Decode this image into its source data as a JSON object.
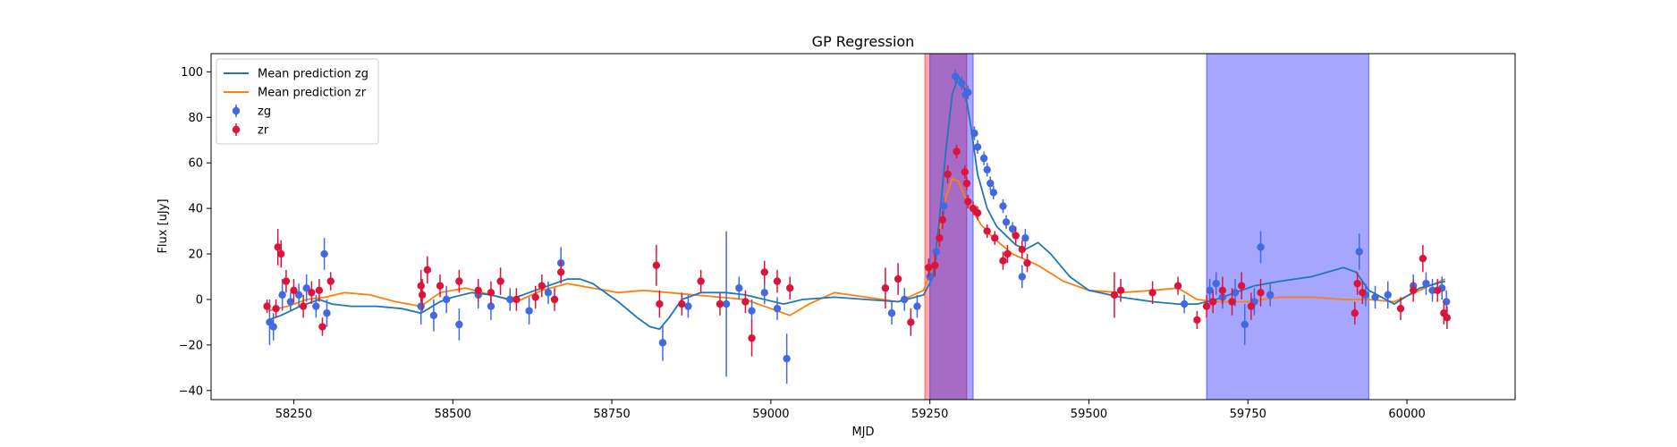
{
  "chart_data": {
    "type": "scatter",
    "title": "GP Regression",
    "xlabel": "MJD",
    "ylabel": "Flux [uJy]",
    "xlim": [
      58120,
      60170
    ],
    "ylim": [
      -44,
      108
    ],
    "xticks": [
      58250,
      58500,
      58750,
      59000,
      59250,
      59500,
      59750,
      60000
    ],
    "yticks": [
      -40,
      -20,
      0,
      20,
      40,
      60,
      80,
      100
    ],
    "legend_position": "upper left",
    "colors": {
      "zg": "#4169e1",
      "zr": "#dc143c",
      "zg_mean": "#1f77b4",
      "zr_mean": "#ff7f0e",
      "band_zg": "#0000ff",
      "band_zr": "#ff0000"
    },
    "legend": [
      {
        "label": "Mean prediction zg",
        "kind": "line",
        "color": "#1f77b4"
      },
      {
        "label": "Mean prediction zr",
        "kind": "line",
        "color": "#ff7f0e"
      },
      {
        "label": "zg",
        "kind": "errorbar",
        "color": "#4169e1"
      },
      {
        "label": "zr",
        "kind": "errorbar",
        "color": "#dc143c"
      }
    ],
    "bands": [
      {
        "series": "zr",
        "x0": 59242,
        "x1": 59308,
        "color": "#ff0000",
        "alpha": 0.35
      },
      {
        "series": "zg",
        "x0": 59250,
        "x1": 59318,
        "color": "#0000ff",
        "alpha": 0.35
      },
      {
        "series": "zg",
        "x0": 59685,
        "x1": 59940,
        "color": "#0000ff",
        "alpha": 0.35
      }
    ],
    "mean_zg": {
      "x": [
        58210,
        58230,
        58260,
        58290,
        58310,
        58340,
        58380,
        58420,
        58450,
        58480,
        58500,
        58530,
        58560,
        58590,
        58620,
        58650,
        58680,
        58700,
        58720,
        58760,
        58790,
        58810,
        58825,
        58840,
        58860,
        58890,
        58930,
        58960,
        58990,
        59020,
        59050,
        59100,
        59150,
        59200,
        59240,
        59255,
        59265,
        59275,
        59285,
        59295,
        59305,
        59315,
        59325,
        59340,
        59355,
        59370,
        59385,
        59400,
        59420,
        59440,
        59470,
        59500,
        59550,
        59600,
        59640,
        59670,
        59700,
        59730,
        59760,
        59800,
        59850,
        59900,
        59920,
        59940,
        59980,
        60020,
        60060
      ],
      "y": [
        -9,
        -7,
        -3,
        0,
        -2,
        -3,
        -3,
        -4,
        -6,
        -1,
        1,
        3,
        2,
        0,
        3,
        6,
        9,
        9,
        7,
        -1,
        -8,
        -12,
        -13,
        -8,
        0,
        3,
        3,
        2,
        0,
        -2,
        0,
        1,
        0,
        -1,
        2,
        10,
        35,
        65,
        90,
        98,
        92,
        75,
        55,
        40,
        32,
        28,
        24,
        22,
        25,
        20,
        10,
        4,
        1,
        -1,
        -2,
        -2,
        0,
        3,
        6,
        8,
        10,
        14,
        12,
        4,
        -2,
        5,
        8
      ]
    },
    "mean_zr": {
      "x": [
        58210,
        58240,
        58270,
        58300,
        58330,
        58370,
        58410,
        58450,
        58480,
        58520,
        58560,
        58600,
        58640,
        58680,
        58720,
        58760,
        58800,
        58840,
        58880,
        58920,
        58960,
        59000,
        59030,
        59060,
        59100,
        59150,
        59200,
        59240,
        59255,
        59265,
        59275,
        59285,
        59295,
        59305,
        59315,
        59330,
        59350,
        59380,
        59420,
        59460,
        59500,
        59550,
        59600,
        59640,
        59670,
        59700,
        59750,
        59800,
        59850,
        59900,
        59940,
        59980,
        60020,
        60060
      ],
      "y": [
        -5,
        -3,
        0,
        1,
        3,
        2,
        -1,
        -3,
        3,
        5,
        2,
        -1,
        4,
        7,
        5,
        3,
        4,
        3,
        2,
        1,
        0,
        -4,
        -7,
        -2,
        3,
        1,
        -1,
        4,
        15,
        30,
        45,
        53,
        52,
        45,
        40,
        33,
        27,
        20,
        15,
        8,
        4,
        3,
        4,
        5,
        0,
        -1,
        -1,
        1,
        1,
        0,
        0,
        -1,
        4,
        9
      ]
    },
    "points_zg": [
      {
        "x": 58212,
        "y": -10,
        "e": 10
      },
      {
        "x": 58218,
        "y": -12,
        "e": 6
      },
      {
        "x": 58232,
        "y": 2,
        "e": 7
      },
      {
        "x": 58245,
        "y": -1,
        "e": 4
      },
      {
        "x": 58258,
        "y": 2,
        "e": 5
      },
      {
        "x": 58270,
        "y": 5,
        "e": 6
      },
      {
        "x": 58285,
        "y": -3,
        "e": 5
      },
      {
        "x": 58298,
        "y": 20,
        "e": 7
      },
      {
        "x": 58302,
        "y": -6,
        "e": 6
      },
      {
        "x": 58450,
        "y": -3,
        "e": 8
      },
      {
        "x": 58470,
        "y": -7,
        "e": 7
      },
      {
        "x": 58490,
        "y": 0,
        "e": 6
      },
      {
        "x": 58510,
        "y": -11,
        "e": 7
      },
      {
        "x": 58540,
        "y": 2,
        "e": 6
      },
      {
        "x": 58560,
        "y": -3,
        "e": 6
      },
      {
        "x": 58590,
        "y": 0,
        "e": 5
      },
      {
        "x": 58620,
        "y": -5,
        "e": 6
      },
      {
        "x": 58650,
        "y": 3,
        "e": 5
      },
      {
        "x": 58670,
        "y": 16,
        "e": 7
      },
      {
        "x": 58830,
        "y": -19,
        "e": 8
      },
      {
        "x": 58870,
        "y": -3,
        "e": 5
      },
      {
        "x": 58930,
        "y": -2,
        "e": 32
      },
      {
        "x": 58950,
        "y": 5,
        "e": 5
      },
      {
        "x": 58970,
        "y": -5,
        "e": 5
      },
      {
        "x": 58990,
        "y": 3,
        "e": 5
      },
      {
        "x": 59010,
        "y": -4,
        "e": 5
      },
      {
        "x": 59025,
        "y": -26,
        "e": 11
      },
      {
        "x": 59190,
        "y": -6,
        "e": 5
      },
      {
        "x": 59210,
        "y": 0,
        "e": 5
      },
      {
        "x": 59230,
        "y": -3,
        "e": 5
      },
      {
        "x": 59250,
        "y": 10,
        "e": 4
      },
      {
        "x": 59260,
        "y": 21,
        "e": 4
      },
      {
        "x": 59272,
        "y": 41,
        "e": 4
      },
      {
        "x": 59290,
        "y": 98,
        "e": 3
      },
      {
        "x": 59300,
        "y": 95,
        "e": 3
      },
      {
        "x": 59306,
        "y": 90,
        "e": 3
      },
      {
        "x": 59310,
        "y": 91,
        "e": 3
      },
      {
        "x": 59320,
        "y": 73,
        "e": 3
      },
      {
        "x": 59325,
        "y": 67,
        "e": 3
      },
      {
        "x": 59335,
        "y": 62,
        "e": 3
      },
      {
        "x": 59340,
        "y": 57,
        "e": 3
      },
      {
        "x": 59345,
        "y": 51,
        "e": 3
      },
      {
        "x": 59350,
        "y": 47,
        "e": 3
      },
      {
        "x": 59365,
        "y": 41,
        "e": 3
      },
      {
        "x": 59370,
        "y": 34,
        "e": 3
      },
      {
        "x": 59380,
        "y": 31,
        "e": 3
      },
      {
        "x": 59395,
        "y": 10,
        "e": 5
      },
      {
        "x": 59400,
        "y": 27,
        "e": 4
      },
      {
        "x": 59650,
        "y": -2,
        "e": 4
      },
      {
        "x": 59690,
        "y": 4,
        "e": 5
      },
      {
        "x": 59700,
        "y": 7,
        "e": 5
      },
      {
        "x": 59710,
        "y": 1,
        "e": 5
      },
      {
        "x": 59730,
        "y": 3,
        "e": 6
      },
      {
        "x": 59745,
        "y": -11,
        "e": 9
      },
      {
        "x": 59760,
        "y": -1,
        "e": 6
      },
      {
        "x": 59770,
        "y": 23,
        "e": 7
      },
      {
        "x": 59785,
        "y": 2,
        "e": 5
      },
      {
        "x": 59925,
        "y": 21,
        "e": 8
      },
      {
        "x": 59935,
        "y": 2,
        "e": 5
      },
      {
        "x": 59950,
        "y": 1,
        "e": 5
      },
      {
        "x": 59970,
        "y": 2,
        "e": 6
      },
      {
        "x": 60010,
        "y": 6,
        "e": 5
      },
      {
        "x": 60030,
        "y": 7,
        "e": 5
      },
      {
        "x": 60040,
        "y": 4,
        "e": 5
      },
      {
        "x": 60055,
        "y": 5,
        "e": 5
      },
      {
        "x": 60062,
        "y": -1,
        "e": 5
      }
    ],
    "points_zr": [
      {
        "x": 58208,
        "y": -3,
        "e": 3
      },
      {
        "x": 58222,
        "y": -4,
        "e": 4
      },
      {
        "x": 58225,
        "y": 23,
        "e": 8
      },
      {
        "x": 58230,
        "y": 20,
        "e": 6
      },
      {
        "x": 58238,
        "y": 8,
        "e": 5
      },
      {
        "x": 58250,
        "y": 4,
        "e": 5
      },
      {
        "x": 58265,
        "y": -3,
        "e": 5
      },
      {
        "x": 58278,
        "y": 3,
        "e": 5
      },
      {
        "x": 58290,
        "y": 4,
        "e": 5
      },
      {
        "x": 58295,
        "y": -12,
        "e": 4
      },
      {
        "x": 58308,
        "y": 8,
        "e": 4
      },
      {
        "x": 58450,
        "y": 6,
        "e": 7
      },
      {
        "x": 58452,
        "y": 2,
        "e": 7
      },
      {
        "x": 58460,
        "y": 13,
        "e": 6
      },
      {
        "x": 58480,
        "y": 6,
        "e": 5
      },
      {
        "x": 58510,
        "y": 8,
        "e": 5
      },
      {
        "x": 58540,
        "y": 4,
        "e": 5
      },
      {
        "x": 58560,
        "y": 3,
        "e": 5
      },
      {
        "x": 58575,
        "y": 8,
        "e": 6
      },
      {
        "x": 58600,
        "y": 0,
        "e": 5
      },
      {
        "x": 58630,
        "y": 1,
        "e": 5
      },
      {
        "x": 58640,
        "y": 6,
        "e": 5
      },
      {
        "x": 58660,
        "y": 0,
        "e": 5
      },
      {
        "x": 58670,
        "y": 12,
        "e": 5
      },
      {
        "x": 58820,
        "y": 15,
        "e": 9
      },
      {
        "x": 58825,
        "y": -2,
        "e": 6
      },
      {
        "x": 58860,
        "y": -2,
        "e": 5
      },
      {
        "x": 58890,
        "y": 8,
        "e": 5
      },
      {
        "x": 58920,
        "y": -2,
        "e": 5
      },
      {
        "x": 58960,
        "y": -1,
        "e": 5
      },
      {
        "x": 58970,
        "y": -17,
        "e": 8
      },
      {
        "x": 58990,
        "y": 12,
        "e": 5
      },
      {
        "x": 59010,
        "y": 8,
        "e": 5
      },
      {
        "x": 59030,
        "y": 5,
        "e": 5
      },
      {
        "x": 59180,
        "y": 5,
        "e": 9
      },
      {
        "x": 59200,
        "y": 9,
        "e": 7
      },
      {
        "x": 59220,
        "y": -10,
        "e": 6
      },
      {
        "x": 59248,
        "y": 14,
        "e": 4
      },
      {
        "x": 59258,
        "y": 15,
        "e": 5
      },
      {
        "x": 59265,
        "y": 27,
        "e": 4
      },
      {
        "x": 59270,
        "y": 35,
        "e": 4
      },
      {
        "x": 59278,
        "y": 55,
        "e": 4
      },
      {
        "x": 59292,
        "y": 65,
        "e": 3
      },
      {
        "x": 59305,
        "y": 56,
        "e": 3
      },
      {
        "x": 59308,
        "y": 51,
        "e": 3
      },
      {
        "x": 59310,
        "y": 43,
        "e": 3
      },
      {
        "x": 59318,
        "y": 40,
        "e": 3
      },
      {
        "x": 59325,
        "y": 38,
        "e": 3
      },
      {
        "x": 59340,
        "y": 30,
        "e": 3
      },
      {
        "x": 59352,
        "y": 27,
        "e": 3
      },
      {
        "x": 59365,
        "y": 17,
        "e": 4
      },
      {
        "x": 59372,
        "y": 20,
        "e": 4
      },
      {
        "x": 59385,
        "y": 28,
        "e": 4
      },
      {
        "x": 59395,
        "y": 22,
        "e": 4
      },
      {
        "x": 59403,
        "y": 16,
        "e": 4
      },
      {
        "x": 59540,
        "y": 2,
        "e": 10
      },
      {
        "x": 59550,
        "y": 4,
        "e": 5
      },
      {
        "x": 59600,
        "y": 3,
        "e": 5
      },
      {
        "x": 59640,
        "y": 6,
        "e": 4
      },
      {
        "x": 59670,
        "y": -9,
        "e": 4
      },
      {
        "x": 59685,
        "y": -3,
        "e": 5
      },
      {
        "x": 59695,
        "y": -1,
        "e": 5
      },
      {
        "x": 59710,
        "y": 4,
        "e": 6
      },
      {
        "x": 59725,
        "y": -1,
        "e": 6
      },
      {
        "x": 59740,
        "y": 6,
        "e": 6
      },
      {
        "x": 59755,
        "y": -3,
        "e": 6
      },
      {
        "x": 59770,
        "y": 3,
        "e": 6
      },
      {
        "x": 59918,
        "y": -6,
        "e": 5
      },
      {
        "x": 59922,
        "y": 7,
        "e": 5
      },
      {
        "x": 59930,
        "y": 3,
        "e": 5
      },
      {
        "x": 59990,
        "y": -4,
        "e": 5
      },
      {
        "x": 60010,
        "y": 4,
        "e": 5
      },
      {
        "x": 60025,
        "y": 18,
        "e": 6
      },
      {
        "x": 60048,
        "y": 4,
        "e": 5
      },
      {
        "x": 60058,
        "y": -6,
        "e": 5
      },
      {
        "x": 60063,
        "y": -8,
        "e": 5
      }
    ]
  }
}
